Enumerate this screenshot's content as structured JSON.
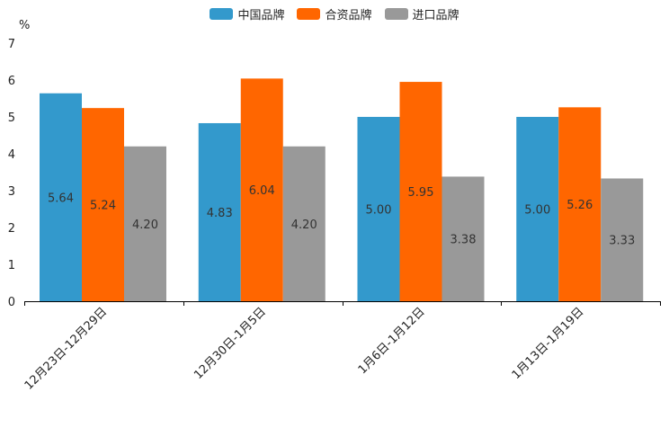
{
  "chart_data": {
    "type": "bar",
    "title": "",
    "unit_label": "%",
    "categories": [
      "12月23日-12月29日",
      "12月30日-1月5日",
      "1月6日-1月12日",
      "1月13日-1月19日"
    ],
    "series": [
      {
        "name": "中国品牌",
        "values": [
          5.64,
          4.83,
          5.0,
          5.0
        ],
        "color": "#3399cc"
      },
      {
        "name": "合资品牌",
        "values": [
          5.24,
          6.04,
          5.95,
          5.26
        ],
        "color": "#ff6600"
      },
      {
        "name": "进口品牌",
        "values": [
          4.2,
          4.2,
          3.38,
          3.33
        ],
        "color": "#999999"
      }
    ],
    "value_labels": [
      [
        "5.64",
        "4.83",
        "5.00",
        "5.00"
      ],
      [
        "5.24",
        "6.04",
        "5.95",
        "5.26"
      ],
      [
        "4.20",
        "4.20",
        "3.38",
        "3.33"
      ]
    ],
    "y_ticks": [
      "0",
      "1",
      "2",
      "3",
      "4",
      "5",
      "6",
      "7"
    ],
    "ylim": [
      0,
      7
    ],
    "xlabel": "",
    "ylabel": "%",
    "legend_position": "top-center",
    "grid": false
  }
}
